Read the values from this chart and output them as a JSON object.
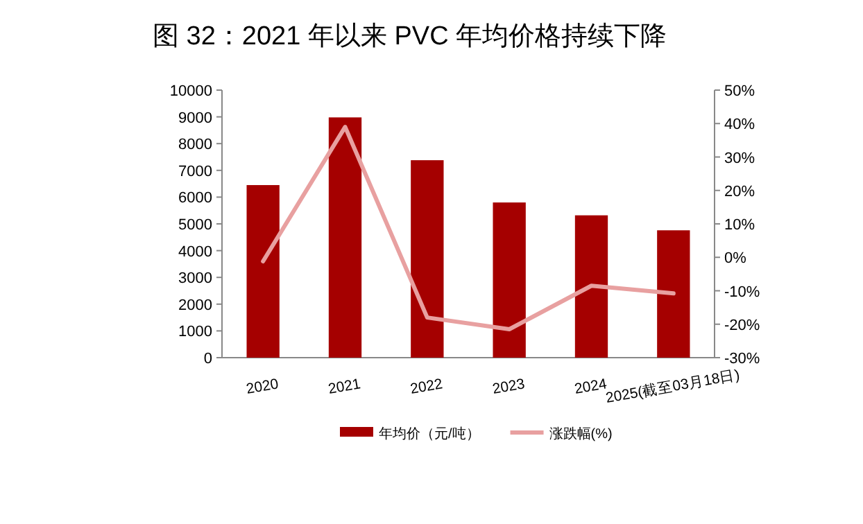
{
  "chart_data": {
    "type": "bar",
    "title": "图 32：2021 年以来 PVC 年均价格持续下降",
    "categories": [
      "2020",
      "2021",
      "2022",
      "2023",
      "2024",
      "2025(截至03月18日)"
    ],
    "series": [
      {
        "name": "年均价（元/吨）",
        "type": "bar",
        "color": "#a50000",
        "values": [
          6450,
          8980,
          7380,
          5800,
          5320,
          4760
        ]
      },
      {
        "name": "涨跌幅(%)",
        "type": "line",
        "axis": "y2",
        "color": "#e8a0a0",
        "values": [
          -1.2,
          39,
          -18,
          -21.5,
          -8.5,
          -10.8
        ]
      }
    ],
    "ylim": [
      0,
      10000
    ],
    "yticks": [
      0,
      1000,
      2000,
      3000,
      4000,
      5000,
      6000,
      7000,
      8000,
      9000,
      10000
    ],
    "y2lim": [
      -30,
      50
    ],
    "y2ticks": [
      {
        "value": -30,
        "label": "-30%"
      },
      {
        "value": -20,
        "label": "-20%"
      },
      {
        "value": -10,
        "label": "-10%"
      },
      {
        "value": 0,
        "label": "0%"
      },
      {
        "value": 10,
        "label": "10%"
      },
      {
        "value": 20,
        "label": "20%"
      },
      {
        "value": 30,
        "label": "30%"
      },
      {
        "value": 40,
        "label": "40%"
      },
      {
        "value": 50,
        "label": "50%"
      }
    ],
    "legend": "bottom",
    "grid": false,
    "marker": "none",
    "line_style": "solid"
  }
}
